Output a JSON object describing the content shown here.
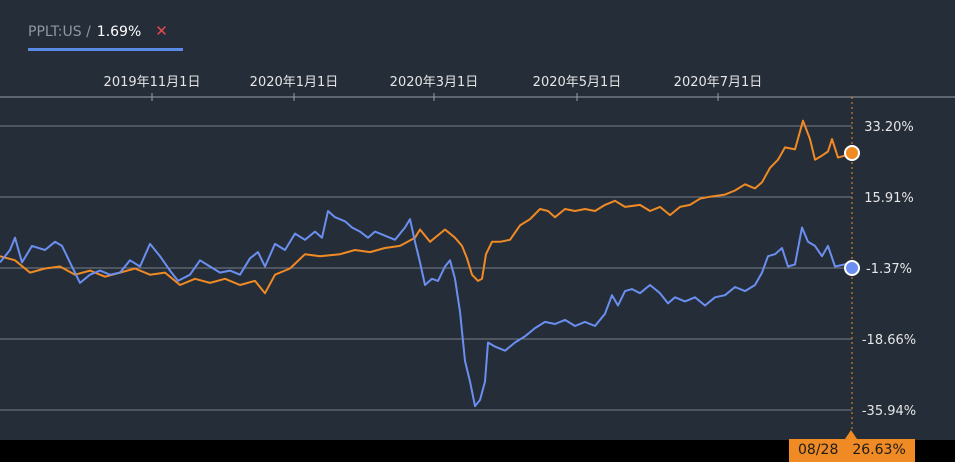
{
  "legend": {
    "ticker": "PPLT:US /",
    "percent": "1.69%",
    "close_glyph": "✕",
    "underline_color": "#5b8ae6",
    "close_color": "#e8474e"
  },
  "crosshair": {
    "date": "08/28",
    "value": "26.63%",
    "color": "#f08a24"
  },
  "chart_data": {
    "type": "line",
    "x_tick_labels": [
      "2019年11月1日",
      "2020年1月1日",
      "2020年3月1日",
      "2020年5月1日",
      "2020年7月1日"
    ],
    "y_tick_labels": [
      "33.20%",
      "15.91%",
      "-1.37%",
      "-18.66%",
      "-35.94%"
    ],
    "y_ticks": [
      33.2,
      15.91,
      -1.37,
      -18.66,
      -35.94
    ],
    "ylim": [
      -35.94,
      33.2
    ],
    "grid": true,
    "colors": {
      "background": "#252d38",
      "grid": "#7a8088",
      "axis_text": "#e6e6e6"
    },
    "series": [
      {
        "color": "#f08a24",
        "end_value": 26.63,
        "points": [
          [
            0,
            1.5
          ],
          [
            15,
            0.5
          ],
          [
            30,
            -2.5
          ],
          [
            45,
            -1.5
          ],
          [
            60,
            -1.0
          ],
          [
            75,
            -3.0
          ],
          [
            90,
            -2.0
          ],
          [
            105,
            -3.5
          ],
          [
            120,
            -2.5
          ],
          [
            135,
            -1.5
          ],
          [
            150,
            -3.0
          ],
          [
            165,
            -2.5
          ],
          [
            180,
            -5.5
          ],
          [
            195,
            -4.0
          ],
          [
            210,
            -5.0
          ],
          [
            225,
            -4.0
          ],
          [
            240,
            -5.5
          ],
          [
            255,
            -4.5
          ],
          [
            265,
            -7.5
          ],
          [
            275,
            -3.0
          ],
          [
            290,
            -1.5
          ],
          [
            305,
            2.0
          ],
          [
            320,
            1.5
          ],
          [
            340,
            2.0
          ],
          [
            355,
            3.0
          ],
          [
            370,
            2.5
          ],
          [
            385,
            3.5
          ],
          [
            400,
            4.0
          ],
          [
            415,
            6.0
          ],
          [
            420,
            8.0
          ],
          [
            430,
            5.0
          ],
          [
            445,
            8.0
          ],
          [
            455,
            6.0
          ],
          [
            462,
            4.0
          ],
          [
            467,
            1.0
          ],
          [
            472,
            -3.0
          ],
          [
            478,
            -4.5
          ],
          [
            482,
            -4.0
          ],
          [
            486,
            2.0
          ],
          [
            492,
            5.0
          ],
          [
            500,
            5.0
          ],
          [
            510,
            5.5
          ],
          [
            520,
            9.0
          ],
          [
            530,
            10.5
          ],
          [
            540,
            13.0
          ],
          [
            548,
            12.5
          ],
          [
            555,
            11.0
          ],
          [
            565,
            13.0
          ],
          [
            575,
            12.5
          ],
          [
            585,
            13.0
          ],
          [
            595,
            12.5
          ],
          [
            605,
            14.0
          ],
          [
            615,
            15.0
          ],
          [
            625,
            13.5
          ],
          [
            640,
            14.0
          ],
          [
            650,
            12.5
          ],
          [
            660,
            13.5
          ],
          [
            670,
            11.5
          ],
          [
            680,
            13.5
          ],
          [
            690,
            14.0
          ],
          [
            700,
            15.5
          ],
          [
            710,
            16.0
          ],
          [
            725,
            16.5
          ],
          [
            735,
            17.5
          ],
          [
            745,
            19.0
          ],
          [
            755,
            18.0
          ],
          [
            762,
            19.5
          ],
          [
            770,
            23.0
          ],
          [
            778,
            25.0
          ],
          [
            785,
            28.0
          ],
          [
            795,
            27.5
          ],
          [
            803,
            34.5
          ],
          [
            810,
            30.0
          ],
          [
            815,
            25.0
          ],
          [
            822,
            26.0
          ],
          [
            828,
            27.0
          ],
          [
            832,
            30.0
          ],
          [
            838,
            25.5
          ],
          [
            845,
            26.0
          ],
          [
            852,
            26.63
          ]
        ]
      },
      {
        "color": "#6b8ff0",
        "end_value": -1.37,
        "points": [
          [
            0,
            0.0
          ],
          [
            10,
            3.0
          ],
          [
            15,
            6.0
          ],
          [
            22,
            0.0
          ],
          [
            32,
            4.0
          ],
          [
            45,
            3.0
          ],
          [
            55,
            5.0
          ],
          [
            62,
            4.0
          ],
          [
            70,
            0.0
          ],
          [
            80,
            -5.0
          ],
          [
            90,
            -3.0
          ],
          [
            100,
            -2.0
          ],
          [
            110,
            -3.0
          ],
          [
            120,
            -2.5
          ],
          [
            130,
            0.5
          ],
          [
            140,
            -1.0
          ],
          [
            150,
            4.5
          ],
          [
            160,
            1.5
          ],
          [
            170,
            -2.0
          ],
          [
            178,
            -4.5
          ],
          [
            190,
            -3.0
          ],
          [
            200,
            0.5
          ],
          [
            210,
            -1.0
          ],
          [
            220,
            -2.5
          ],
          [
            230,
            -2.0
          ],
          [
            240,
            -3.0
          ],
          [
            250,
            1.0
          ],
          [
            258,
            2.5
          ],
          [
            265,
            -1.0
          ],
          [
            275,
            4.5
          ],
          [
            285,
            3.0
          ],
          [
            295,
            7.0
          ],
          [
            305,
            5.5
          ],
          [
            315,
            7.5
          ],
          [
            322,
            6.0
          ],
          [
            328,
            12.5
          ],
          [
            335,
            11.0
          ],
          [
            345,
            10.0
          ],
          [
            352,
            8.5
          ],
          [
            360,
            7.5
          ],
          [
            368,
            6.0
          ],
          [
            375,
            7.5
          ],
          [
            385,
            6.5
          ],
          [
            395,
            5.5
          ],
          [
            405,
            8.5
          ],
          [
            410,
            10.5
          ],
          [
            415,
            5.0
          ],
          [
            420,
            0.0
          ],
          [
            425,
            -5.5
          ],
          [
            432,
            -4.0
          ],
          [
            438,
            -4.5
          ],
          [
            445,
            -1.0
          ],
          [
            450,
            0.5
          ],
          [
            455,
            -4.0
          ],
          [
            460,
            -12.0
          ],
          [
            465,
            -24.0
          ],
          [
            470,
            -29.0
          ],
          [
            475,
            -35.0
          ],
          [
            480,
            -33.5
          ],
          [
            485,
            -29.0
          ],
          [
            488,
            -19.5
          ],
          [
            495,
            -20.5
          ],
          [
            505,
            -21.5
          ],
          [
            515,
            -19.5
          ],
          [
            525,
            -18.0
          ],
          [
            535,
            -16.0
          ],
          [
            545,
            -14.5
          ],
          [
            555,
            -15.0
          ],
          [
            565,
            -14.0
          ],
          [
            575,
            -15.5
          ],
          [
            585,
            -14.5
          ],
          [
            595,
            -15.5
          ],
          [
            605,
            -12.5
          ],
          [
            612,
            -8.0
          ],
          [
            618,
            -10.5
          ],
          [
            625,
            -7.0
          ],
          [
            632,
            -6.5
          ],
          [
            640,
            -7.5
          ],
          [
            650,
            -5.5
          ],
          [
            660,
            -7.5
          ],
          [
            668,
            -10.0
          ],
          [
            675,
            -8.5
          ],
          [
            685,
            -9.5
          ],
          [
            695,
            -8.5
          ],
          [
            705,
            -10.5
          ],
          [
            715,
            -8.5
          ],
          [
            725,
            -8.0
          ],
          [
            735,
            -6.0
          ],
          [
            745,
            -7.0
          ],
          [
            755,
            -5.5
          ],
          [
            762,
            -2.5
          ],
          [
            768,
            1.5
          ],
          [
            775,
            2.0
          ],
          [
            782,
            3.5
          ],
          [
            788,
            -1.0
          ],
          [
            795,
            -0.5
          ],
          [
            802,
            8.5
          ],
          [
            808,
            5.0
          ],
          [
            815,
            4.0
          ],
          [
            822,
            1.5
          ],
          [
            828,
            4.0
          ],
          [
            835,
            -1.0
          ],
          [
            845,
            -0.5
          ],
          [
            852,
            -1.37
          ]
        ]
      }
    ]
  }
}
